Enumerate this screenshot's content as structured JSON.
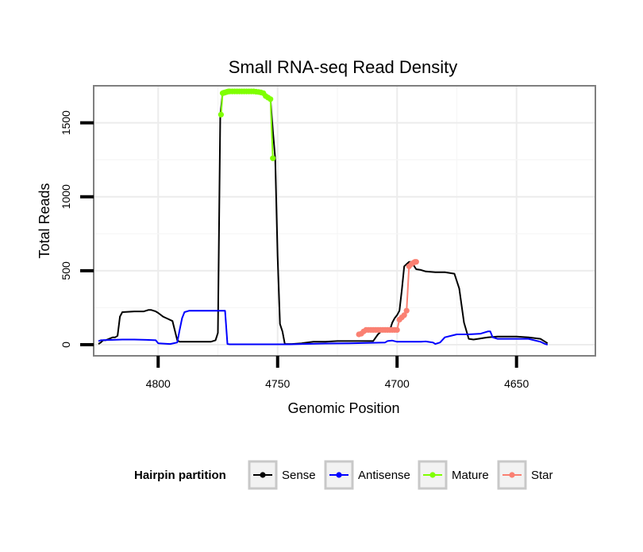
{
  "chart_data": {
    "type": "line",
    "title": "Small RNA-seq Read Density",
    "xlabel": "Genomic Position",
    "ylabel": "Total Reads",
    "xlim": [
      4827,
      4617
    ],
    "ylim": [
      -75,
      1750
    ],
    "x_reversed": true,
    "x_ticks": [
      4800,
      4750,
      4700,
      4650
    ],
    "y_ticks": [
      0,
      500,
      1000,
      1500
    ],
    "grid": true,
    "legend_title": "Hairpin partition",
    "legend_position": "bottom",
    "colors": {
      "Sense": "#000000",
      "Antisense": "#0000ff",
      "Mature": "#7fff00",
      "Star": "#fa8072"
    },
    "series": [
      {
        "name": "Sense",
        "x": [
          4825,
          4824,
          4823,
          4822,
          4819,
          4818,
          4817,
          4816,
          4815,
          4810,
          4806,
          4804,
          4803,
          4801,
          4800,
          4798,
          4796,
          4794,
          4792,
          4791,
          4790,
          4788,
          4785,
          4778,
          4776,
          4775,
          4774,
          4773,
          4772,
          4771,
          4770,
          4769,
          4766,
          4762,
          4758,
          4756,
          4754,
          4753,
          4752,
          4751,
          4750,
          4749,
          4748,
          4747,
          4744,
          4740,
          4735,
          4730,
          4725,
          4720,
          4715,
          4710,
          4708,
          4706,
          4704,
          4703,
          4702,
          4701,
          4700,
          4699,
          4698,
          4697,
          4696,
          4695,
          4694,
          4692,
          4690,
          4688,
          4684,
          4680,
          4676,
          4674,
          4672,
          4670,
          4668,
          4666,
          4664,
          4662,
          4658,
          4655,
          4650,
          4645,
          4640,
          4638,
          4637
        ],
        "y": [
          5,
          15,
          30,
          30,
          50,
          50,
          60,
          190,
          220,
          225,
          225,
          235,
          235,
          225,
          215,
          190,
          175,
          160,
          30,
          20,
          20,
          20,
          20,
          20,
          30,
          80,
          1555,
          1700,
          1705,
          1710,
          1712,
          1712,
          1712,
          1712,
          1710,
          1705,
          1680,
          1660,
          1450,
          1260,
          600,
          140,
          90,
          5,
          5,
          10,
          20,
          20,
          25,
          25,
          25,
          25,
          70,
          100,
          100,
          100,
          150,
          180,
          200,
          230,
          370,
          530,
          545,
          560,
          560,
          510,
          505,
          495,
          490,
          490,
          480,
          380,
          150,
          40,
          35,
          40,
          45,
          50,
          55,
          55,
          55,
          50,
          40,
          20,
          10
        ]
      },
      {
        "name": "Antisense",
        "x": [
          4825,
          4824,
          4815,
          4810,
          4805,
          4801,
          4800,
          4795,
          4794,
          4792,
          4791,
          4790,
          4789,
          4787,
          4785,
          4780,
          4773,
          4772,
          4771,
          4770,
          4765,
          4760,
          4755,
          4750,
          4745,
          4740,
          4730,
          4720,
          4705,
          4704,
          4702,
          4700,
          4695,
          4690,
          4688,
          4685,
          4684,
          4682,
          4680,
          4675,
          4670,
          4665,
          4662,
          4661,
          4660,
          4658,
          4655,
          4650,
          4645,
          4640,
          4638,
          4637
        ],
        "y": [
          25,
          30,
          35,
          35,
          33,
          30,
          10,
          5,
          8,
          15,
          100,
          180,
          220,
          230,
          230,
          230,
          230,
          230,
          5,
          3,
          3,
          3,
          3,
          3,
          3,
          5,
          8,
          10,
          15,
          25,
          28,
          20,
          20,
          20,
          22,
          15,
          5,
          15,
          50,
          70,
          70,
          75,
          90,
          90,
          50,
          40,
          40,
          40,
          40,
          20,
          5,
          0
        ]
      },
      {
        "name": "Mature",
        "x": [
          4773.7,
          4773,
          4772.6,
          4772.2,
          4771.8,
          4771.4,
          4771,
          4770.5,
          4770,
          4769,
          4768,
          4767,
          4766,
          4765,
          4764,
          4763,
          4762,
          4761,
          4760,
          4759,
          4758,
          4757,
          4756,
          4755,
          4754,
          4753,
          4752
        ],
        "y": [
          1555,
          1700,
          1702,
          1704,
          1706,
          1708,
          1710,
          1712,
          1712,
          1712,
          1712,
          1712,
          1712,
          1712,
          1712,
          1712,
          1712,
          1712,
          1712,
          1710,
          1708,
          1705,
          1700,
          1680,
          1670,
          1660,
          1260
        ]
      },
      {
        "name": "Star",
        "x": [
          4716,
          4715,
          4714,
          4713,
          4712,
          4711,
          4710,
          4709,
          4708,
          4707,
          4706,
          4705,
          4704,
          4703,
          4702,
          4701,
          4700,
          4699,
          4698,
          4697,
          4696,
          4695,
          4694,
          4693,
          4692.5,
          4692
        ],
        "y": [
          70,
          75,
          90,
          100,
          100,
          100,
          100,
          100,
          100,
          100,
          100,
          100,
          100,
          100,
          100,
          100,
          100,
          170,
          185,
          200,
          230,
          530,
          545,
          555,
          560,
          560
        ]
      }
    ],
    "draw_order": [
      "Sense",
      "Antisense",
      "Mature",
      "Star"
    ]
  }
}
